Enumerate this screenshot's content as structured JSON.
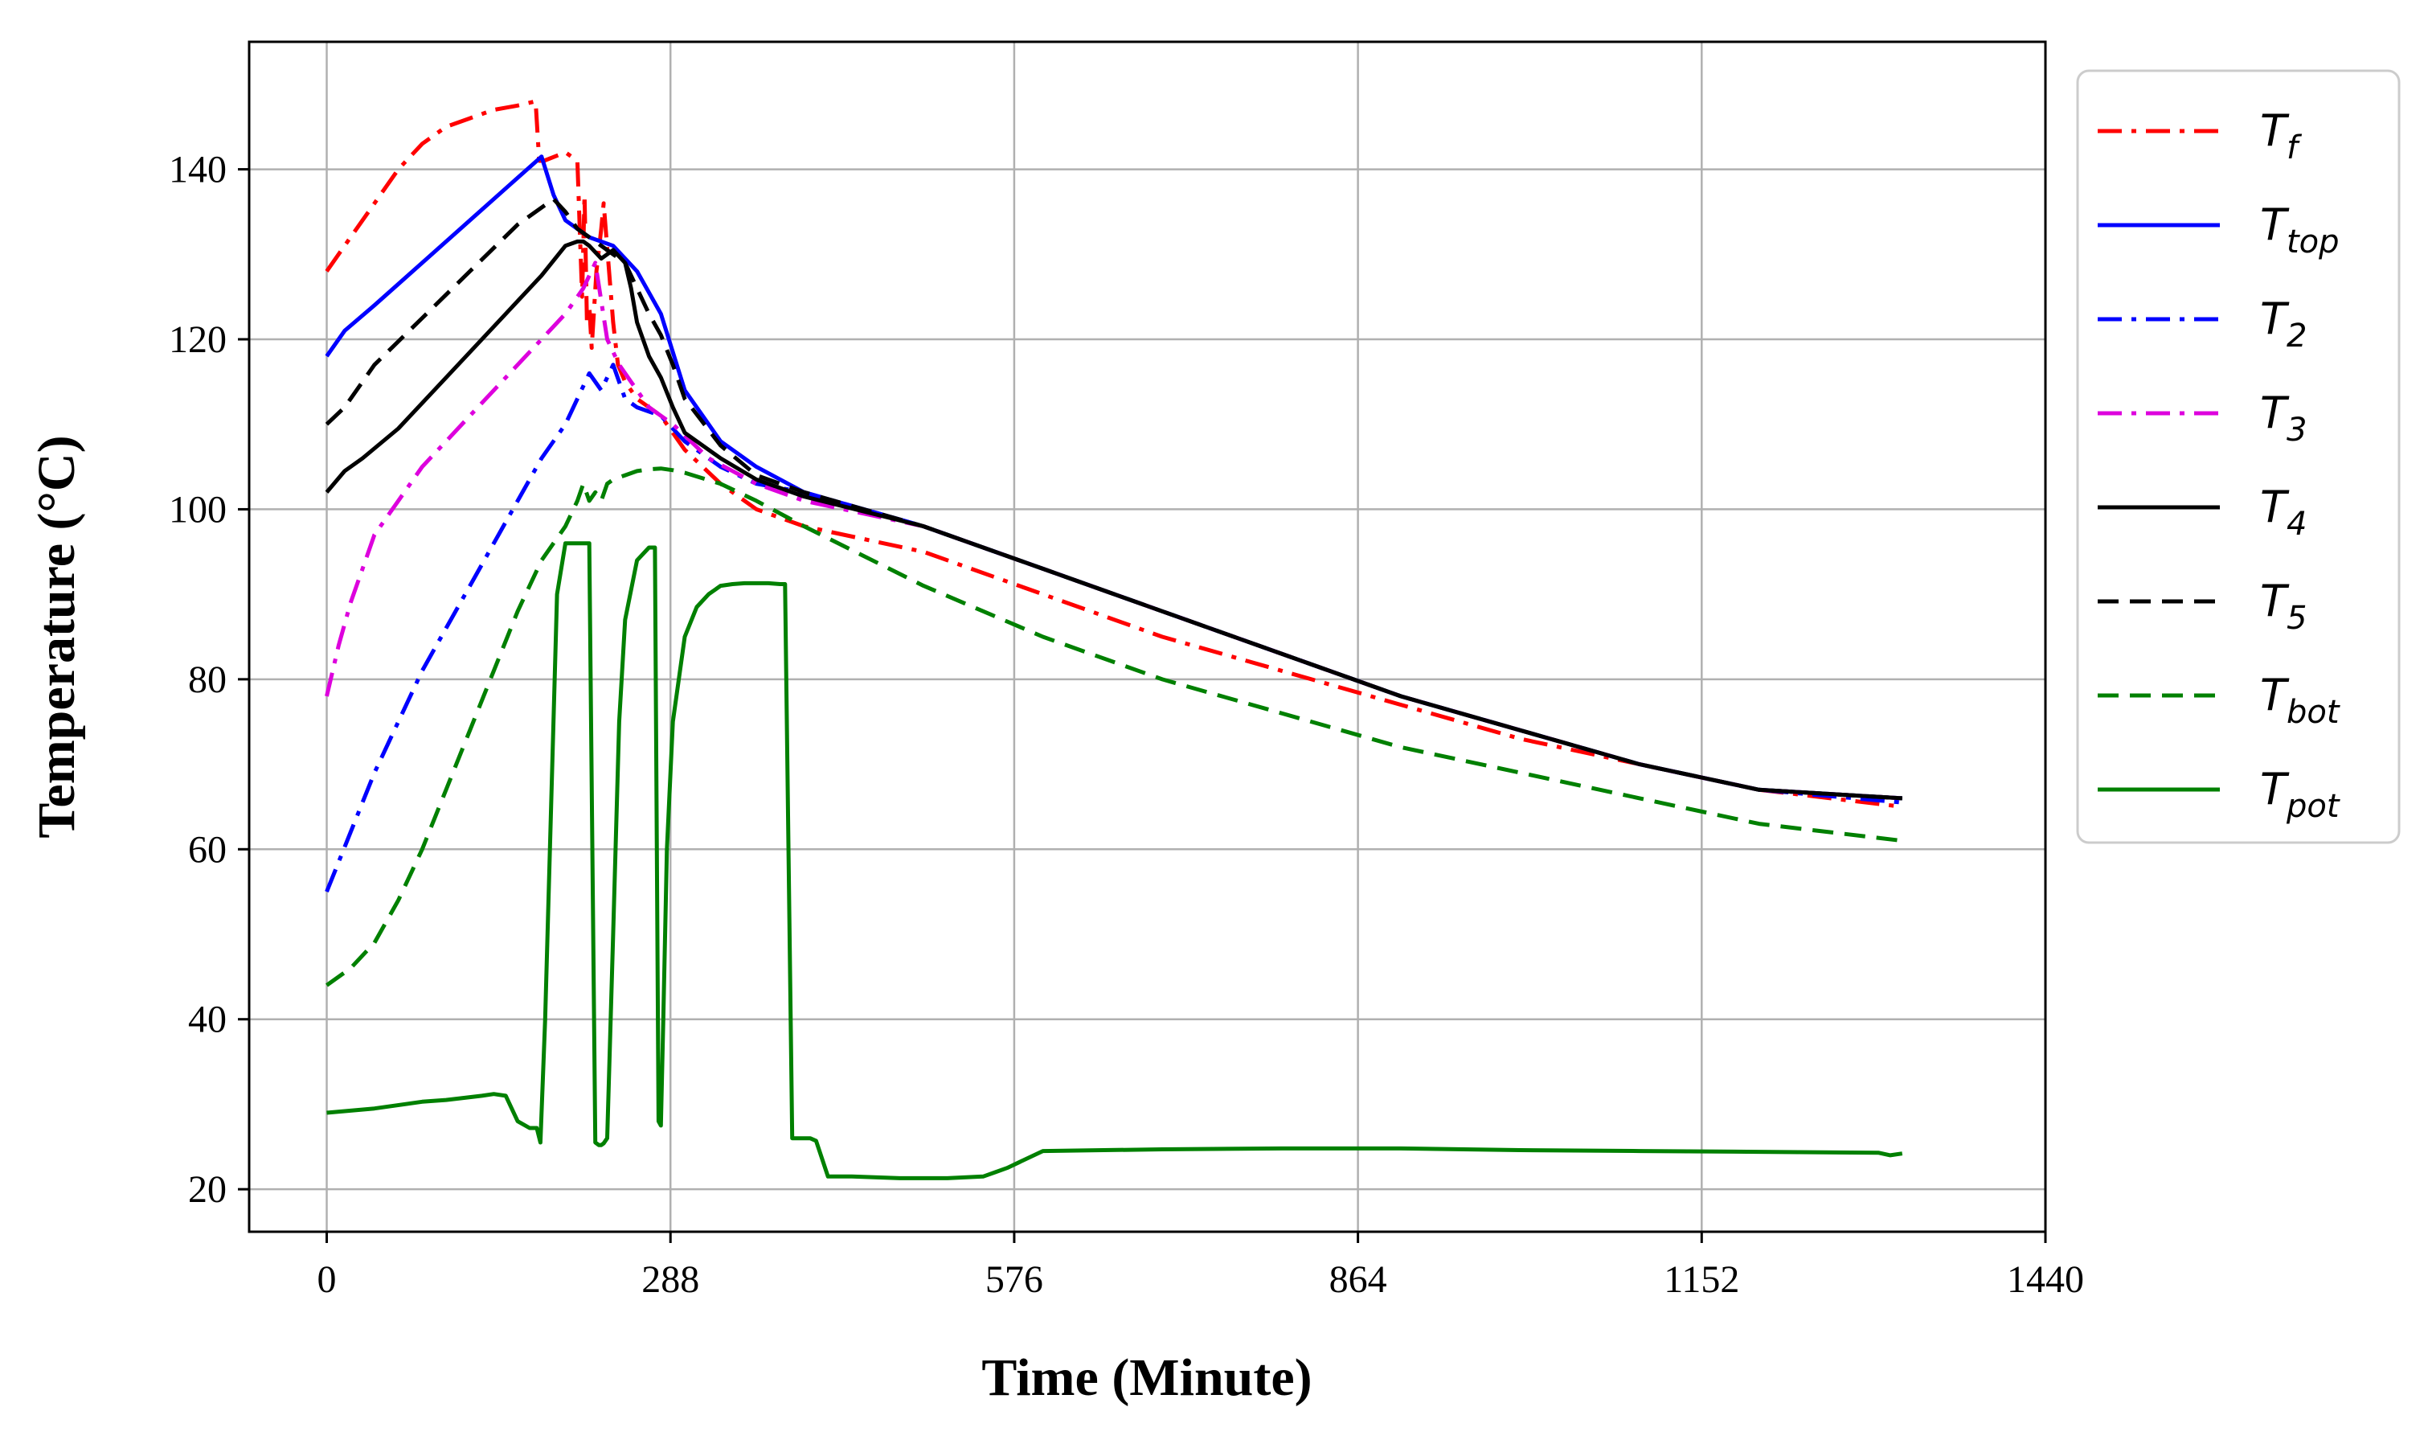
{
  "chart_data": {
    "type": "line",
    "title": "",
    "xlabel": "Time (Minute)",
    "ylabel": "Temperature  (°C)",
    "xlim": [
      -65,
      1440
    ],
    "ylim": [
      15,
      155
    ],
    "xticks": [
      0,
      288,
      576,
      864,
      1152,
      1440
    ],
    "yticks": [
      20,
      40,
      60,
      80,
      100,
      120,
      140
    ],
    "grid": true,
    "legend_position": "outside-right",
    "series": [
      {
        "name": "Tf",
        "base": "T",
        "sub": "f",
        "color": "#ff0000",
        "dash": "dashdot",
        "x": [
          0,
          20,
          40,
          60,
          80,
          100,
          120,
          140,
          160,
          175,
          178,
          182,
          200,
          210,
          214,
          216,
          218,
          220,
          222,
          226,
          230,
          232,
          236,
          240,
          244,
          250,
          260,
          280,
          300,
          330,
          360,
          400,
          500,
          600,
          700,
          800,
          900,
          1000,
          1100,
          1200,
          1320
        ],
        "y": [
          128,
          132,
          136,
          140,
          143,
          145,
          146,
          147,
          147.5,
          148,
          141,
          141,
          142,
          141,
          125,
          137,
          122,
          124,
          119,
          128,
          133,
          136,
          129,
          122,
          117,
          115,
          113,
          111,
          107,
          103,
          100,
          98,
          95,
          90,
          85,
          81,
          77,
          73,
          70,
          67,
          65
        ]
      },
      {
        "name": "Ttop",
        "base": "T",
        "sub": "top",
        "color": "#0000ff",
        "dash": "solid",
        "x": [
          0,
          15,
          40,
          80,
          120,
          160,
          180,
          190,
          200,
          220,
          240,
          260,
          280,
          300,
          330,
          360,
          400,
          500,
          600,
          700,
          800,
          900,
          1000,
          1100,
          1200,
          1320
        ],
        "y": [
          118,
          121,
          124,
          129,
          134,
          139,
          141.5,
          137,
          134,
          132,
          131,
          128,
          123,
          114,
          108,
          105,
          102,
          98,
          93,
          88,
          83,
          78,
          74,
          70,
          67,
          66
        ]
      },
      {
        "name": "T2",
        "base": "T",
        "sub": "2",
        "color": "#0000ff",
        "dash": "dashdot",
        "x": [
          0,
          20,
          40,
          60,
          80,
          100,
          120,
          140,
          160,
          180,
          200,
          210,
          220,
          230,
          240,
          250,
          260,
          280,
          300,
          330,
          360,
          400,
          500,
          600,
          700,
          800,
          900,
          1000,
          1100,
          1200,
          1320
        ],
        "y": [
          55,
          62,
          69,
          75,
          81,
          86,
          91,
          96,
          101,
          106,
          110,
          113,
          116,
          114,
          117,
          113,
          112,
          111,
          108,
          105,
          103,
          102,
          98,
          93,
          88,
          83,
          78,
          74,
          70,
          67,
          65.5
        ]
      },
      {
        "name": "T3",
        "base": "T",
        "sub": "3",
        "color": "#dd00dd",
        "dash": "dashdot",
        "x": [
          0,
          10,
          20,
          30,
          40,
          60,
          80,
          100,
          120,
          140,
          160,
          180,
          200,
          215,
          225,
          235,
          245,
          255,
          270,
          290,
          320,
          360,
          400,
          500,
          600,
          700,
          800,
          900,
          1000,
          1100,
          1200,
          1320
        ],
        "y": [
          78,
          84,
          89,
          93,
          97,
          101,
          105,
          108,
          111,
          114,
          117,
          120,
          123,
          126,
          129,
          120,
          117,
          115,
          112,
          110,
          106,
          103,
          101,
          98,
          93,
          88,
          83,
          78,
          74,
          70,
          67,
          66
        ]
      },
      {
        "name": "T4",
        "base": "T",
        "sub": "4",
        "color": "#000000",
        "dash": "solid",
        "x": [
          0,
          15,
          30,
          60,
          90,
          120,
          150,
          180,
          200,
          210,
          215,
          220,
          230,
          240,
          250,
          255,
          260,
          270,
          280,
          290,
          300,
          330,
          360,
          400,
          500,
          600,
          700,
          800,
          900,
          1000,
          1100,
          1200,
          1320
        ],
        "y": [
          102,
          104.5,
          106,
          109.5,
          114,
          118.5,
          123,
          127.5,
          131,
          131.5,
          131.5,
          131,
          129.5,
          130.5,
          129,
          126,
          122,
          118,
          115.5,
          112,
          109,
          106,
          103.5,
          101.5,
          98,
          93,
          88,
          83,
          78,
          74,
          70,
          67,
          66
        ]
      },
      {
        "name": "T5",
        "base": "T",
        "sub": "5",
        "color": "#000000",
        "dash": "dashed",
        "x": [
          0,
          15,
          40,
          80,
          120,
          160,
          190,
          200,
          210,
          220,
          230,
          240,
          250,
          260,
          270,
          280,
          290,
          300,
          330,
          360,
          400,
          500,
          600,
          700,
          800,
          900,
          1000,
          1100,
          1200,
          1320
        ],
        "y": [
          110,
          112,
          117,
          122.5,
          128,
          133.5,
          136.5,
          135,
          133,
          132,
          131,
          130,
          129,
          126,
          123,
          120.5,
          117,
          113,
          107.5,
          104,
          102,
          98,
          93,
          88,
          83,
          78,
          74,
          70,
          67,
          66
        ]
      },
      {
        "name": "Tbot",
        "base": "T",
        "sub": "bot",
        "color": "#008000",
        "dash": "dashed",
        "x": [
          0,
          20,
          40,
          60,
          80,
          100,
          120,
          140,
          160,
          180,
          200,
          210,
          215,
          220,
          225,
          230,
          235,
          240,
          250,
          260,
          270,
          280,
          290,
          300,
          330,
          360,
          400,
          500,
          600,
          700,
          800,
          900,
          1000,
          1100,
          1200,
          1320
        ],
        "y": [
          44,
          46,
          49,
          54,
          60,
          67,
          74,
          81,
          88,
          94,
          98,
          101,
          103,
          101,
          102,
          101,
          103,
          103.5,
          104,
          104.5,
          104.7,
          104.8,
          104.6,
          104.3,
          103,
          101,
          98,
          91,
          85,
          80,
          76,
          72,
          69,
          66,
          63,
          61
        ]
      },
      {
        "name": "Tpot",
        "base": "T",
        "sub": "pot",
        "color": "#008000",
        "dash": "solid",
        "x": [
          0,
          40,
          80,
          100,
          130,
          140,
          150,
          160,
          170,
          176,
          179,
          183,
          188,
          193,
          200,
          210,
          220,
          225,
          228,
          230,
          232,
          235,
          240,
          245,
          250,
          260,
          270,
          275,
          278,
          280,
          282,
          285,
          290,
          300,
          310,
          320,
          330,
          340,
          350,
          360,
          370,
          380,
          384,
          390,
          405,
          410,
          420,
          440,
          480,
          520,
          550,
          560,
          570,
          600,
          700,
          800,
          900,
          1000,
          1100,
          1200,
          1300,
          1310,
          1320
        ],
        "y": [
          29,
          29.5,
          30.3,
          30.5,
          31,
          31.2,
          31,
          28,
          27.2,
          27.2,
          25.5,
          40,
          65,
          90,
          96,
          96,
          96,
          25.5,
          25.2,
          25.2,
          25.4,
          26,
          50,
          75,
          87,
          94,
          95.5,
          95.5,
          28,
          27.5,
          40,
          60,
          75,
          85,
          88.5,
          90,
          91,
          91.2,
          91.3,
          91.3,
          91.3,
          91.2,
          91.2,
          26,
          26,
          25.7,
          21.5,
          21.5,
          21.3,
          21.3,
          21.5,
          22,
          22.5,
          24.5,
          24.7,
          24.8,
          24.8,
          24.6,
          24.5,
          24.4,
          24.3,
          24,
          24.2
        ]
      }
    ]
  }
}
